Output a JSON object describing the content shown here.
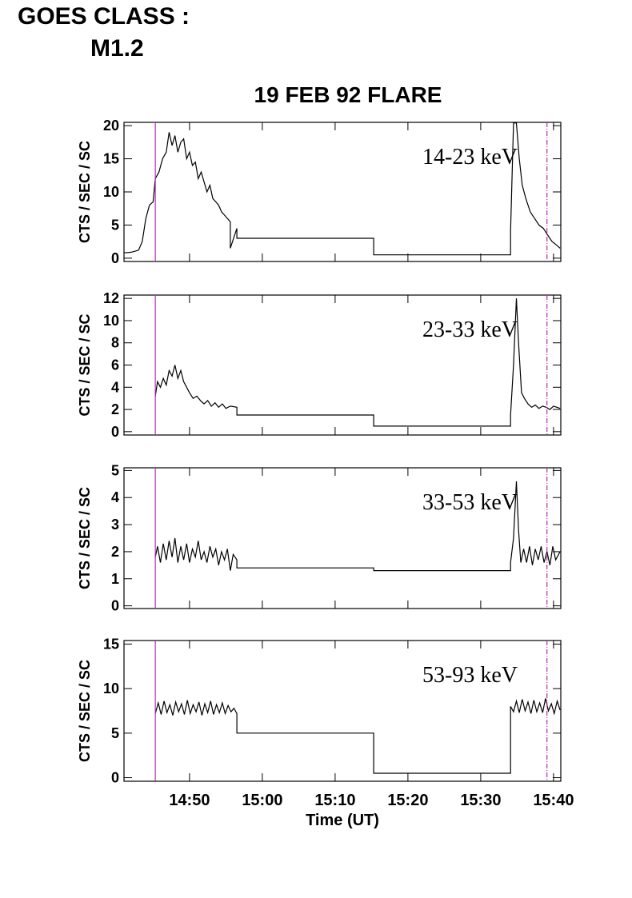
{
  "header": {
    "goes_label": "GOES CLASS :",
    "goes_class": "M1.2"
  },
  "chart_data": [
    {
      "type": "line",
      "title": "19 FEB 92 FLARE",
      "label": "14-23 keV",
      "ylabel": "CTS / SEC / SC",
      "color": "#000000",
      "xlim": [
        41,
        101
      ],
      "xticks": [
        50,
        60,
        70,
        80,
        90,
        100
      ],
      "ylim": [
        -0.5,
        20.5
      ],
      "yticks": [
        0,
        5,
        10,
        15,
        20
      ],
      "vlines": [
        45.3,
        99.1
      ],
      "vline_color": "#b030b0",
      "x": [
        41,
        42,
        43,
        43.5,
        44,
        44.5,
        45,
        45.3,
        45.8,
        46.3,
        46.8,
        47.2,
        47.6,
        48,
        48.4,
        48.8,
        49.2,
        49.6,
        50,
        50.4,
        50.8,
        51.2,
        51.6,
        52,
        52.4,
        52.8,
        53.2,
        53.6,
        54,
        54.4,
        54.8,
        55.2,
        55.6,
        55.6,
        56.5,
        56.5,
        75.3,
        75.3,
        94.1,
        94.1,
        94.5,
        94.9,
        95.3,
        95.7,
        96.2,
        96.8,
        97.4,
        98,
        98.6,
        99.2,
        99.8,
        100.4,
        100.9
      ],
      "values": [
        0.8,
        0.9,
        1.2,
        2.5,
        6,
        8,
        8.5,
        12,
        13,
        15,
        16,
        19,
        17,
        18.5,
        16,
        17.5,
        18,
        15,
        16,
        14,
        14.5,
        12,
        13,
        11.5,
        10,
        11,
        9,
        8.5,
        8,
        7,
        6.5,
        6,
        5.5,
        1.5,
        4.5,
        3,
        3,
        0.5,
        0.5,
        4,
        20.4,
        20.4,
        15,
        11,
        9,
        7,
        6,
        5,
        4.5,
        3.5,
        2.5,
        2,
        1.5
      ]
    },
    {
      "type": "line",
      "label": "23-33 keV",
      "ylabel": "CTS / SEC / SC",
      "color": "#000000",
      "xlim": [
        41,
        101
      ],
      "xticks": [
        50,
        60,
        70,
        80,
        90,
        100
      ],
      "ylim": [
        -0.3,
        12.3
      ],
      "yticks": [
        0,
        2,
        4,
        6,
        8,
        10,
        12
      ],
      "vlines": [
        45.3,
        99.1
      ],
      "vline_color": "#b030b0",
      "x": [
        45.3,
        45.6,
        46,
        46.4,
        46.8,
        47.2,
        47.6,
        48,
        48.4,
        48.8,
        49.2,
        49.6,
        50,
        50.5,
        51,
        51.5,
        52,
        52.5,
        53,
        53.5,
        54,
        54.5,
        55,
        55.6,
        56.5,
        56.5,
        75.3,
        75.3,
        94.1,
        94.1,
        94.5,
        94.9,
        95.2,
        95.6,
        96,
        96.5,
        97,
        97.5,
        98,
        98.5,
        99,
        99.5,
        100,
        100.9
      ],
      "values": [
        3.2,
        4.5,
        4,
        4.8,
        4.2,
        5.5,
        5,
        6,
        4.8,
        5.5,
        4.5,
        4,
        3.5,
        3,
        3.2,
        2.8,
        2.5,
        2.8,
        2.3,
        2.6,
        2.2,
        2.5,
        2.1,
        2.3,
        2.2,
        1.5,
        1.5,
        0.5,
        0.5,
        1.5,
        6,
        12,
        8,
        3.5,
        3,
        2.5,
        2.2,
        2.4,
        2.1,
        2.3,
        2.2,
        2,
        2.3,
        2.1
      ]
    },
    {
      "type": "line",
      "label": "33-53 keV",
      "ylabel": "CTS / SEC / SC",
      "color": "#000000",
      "xlim": [
        41,
        101
      ],
      "xticks": [
        50,
        60,
        70,
        80,
        90,
        100
      ],
      "ylim": [
        -0.1,
        5.1
      ],
      "yticks": [
        0,
        1,
        2,
        3,
        4,
        5
      ],
      "vlines": [
        45.3,
        99.1
      ],
      "vline_color": "#b030b0",
      "x": [
        45.3,
        45.6,
        46,
        46.4,
        46.8,
        47.2,
        47.6,
        48,
        48.4,
        48.8,
        49.2,
        49.6,
        50,
        50.4,
        50.8,
        51.2,
        51.6,
        52,
        52.4,
        52.8,
        53.2,
        53.6,
        54,
        54.4,
        54.8,
        55.2,
        55.6,
        56,
        56.5,
        56.5,
        75.3,
        75.3,
        94.1,
        94.1,
        94.5,
        94.9,
        95.2,
        95.5,
        95.9,
        96.3,
        96.7,
        97.1,
        97.5,
        97.9,
        98.3,
        98.7,
        99.1,
        99.5,
        99.9,
        100.3,
        100.9
      ],
      "values": [
        1.8,
        2.2,
        1.6,
        2.3,
        1.7,
        2.4,
        1.8,
        2.5,
        1.6,
        2.2,
        1.7,
        2.3,
        1.6,
        2.1,
        1.8,
        2.4,
        1.7,
        2,
        1.6,
        2.2,
        1.8,
        2.1,
        1.5,
        2,
        1.7,
        2.1,
        1.3,
        1.9,
        1.7,
        1.4,
        1.4,
        1.3,
        1.3,
        1.6,
        2.5,
        4.6,
        2.8,
        1.6,
        2.1,
        1.6,
        2.2,
        1.5,
        2.1,
        1.7,
        2.2,
        1.6,
        2,
        1.5,
        2.2,
        1.7,
        2
      ]
    },
    {
      "type": "line",
      "label": "53-93 keV",
      "ylabel": "CTS / SEC / SC",
      "color": "#000000",
      "xlabel": "Time (UT)",
      "xlim": [
        41,
        101
      ],
      "xticks": [
        {
          "value": 50,
          "label": "14:50"
        },
        {
          "value": 60,
          "label": "15:00"
        },
        {
          "value": 70,
          "label": "15:10"
        },
        {
          "value": 80,
          "label": "15:20"
        },
        {
          "value": 90,
          "label": "15:30"
        },
        {
          "value": 100,
          "label": "15:40"
        }
      ],
      "ylim": [
        -0.4,
        15.4
      ],
      "yticks": [
        0,
        5,
        10,
        15
      ],
      "vlines": [
        45.3,
        99.1
      ],
      "vline_color": "#b030b0",
      "x": [
        45.3,
        45.7,
        46.1,
        46.5,
        46.9,
        47.3,
        47.7,
        48.1,
        48.5,
        48.9,
        49.3,
        49.7,
        50.1,
        50.5,
        50.9,
        51.3,
        51.7,
        52.1,
        52.5,
        52.9,
        53.3,
        53.7,
        54.1,
        54.5,
        54.9,
        55.3,
        55.7,
        56.1,
        56.5,
        56.5,
        75.3,
        75.3,
        94.1,
        94.1,
        94.5,
        94.9,
        95.3,
        95.7,
        96.1,
        96.5,
        96.9,
        97.3,
        97.7,
        98.1,
        98.5,
        98.9,
        99.3,
        99.7,
        100.1,
        100.5,
        100.9
      ],
      "values": [
        7.2,
        8.4,
        7.1,
        8.6,
        7.3,
        8.2,
        7,
        8.5,
        7.4,
        8.3,
        7.1,
        8.7,
        7.2,
        8.2,
        7.4,
        8.5,
        7,
        8.3,
        7.3,
        8.6,
        7.1,
        8.2,
        7.3,
        8.4,
        7.2,
        8.1,
        7.4,
        7.8,
        7.2,
        5,
        5,
        0.5,
        0.5,
        8,
        7.4,
        8.6,
        7.3,
        8.8,
        7.5,
        8.5,
        7.2,
        8.7,
        7.4,
        8.4,
        7.3,
        8.9,
        7.5,
        8.3,
        7.2,
        8.6,
        7.6
      ]
    }
  ]
}
